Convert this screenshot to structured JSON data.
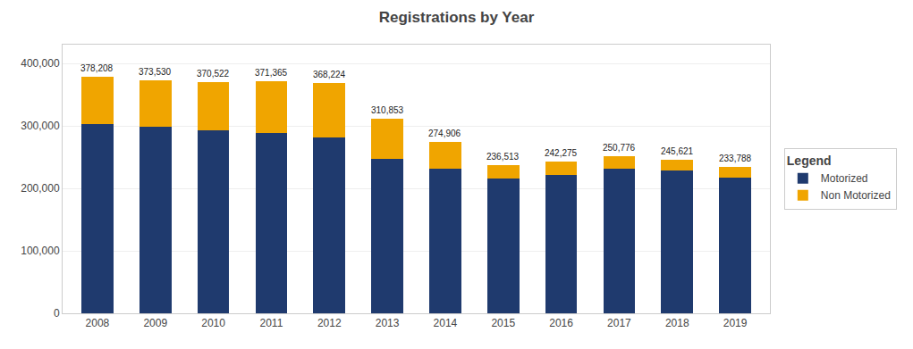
{
  "chart_data": {
    "type": "bar",
    "title": "Registrations by Year",
    "categories": [
      "2008",
      "2009",
      "2010",
      "2011",
      "2012",
      "2013",
      "2014",
      "2015",
      "2016",
      "2017",
      "2018",
      "2019"
    ],
    "series": [
      {
        "name": "Motorized",
        "color": "#1f3a6e",
        "values": [
          303000,
          298000,
          293500,
          289000,
          282000,
          247000,
          232000,
          216000,
          221500,
          231000,
          228000,
          216500
        ]
      },
      {
        "name": "Non Motorized",
        "color": "#f0a500",
        "values": [
          75208,
          75530,
          77022,
          82365,
          86224,
          63853,
          42906,
          20513,
          20775,
          19776,
          17621,
          17288
        ]
      }
    ],
    "stacked": true,
    "totals": [
      378208,
      373530,
      370522,
      371365,
      368224,
      310853,
      274906,
      236513,
      242275,
      250776,
      245621,
      233788
    ],
    "total_labels": [
      "378,208",
      "373,530",
      "370,522",
      "371,365",
      "368,224",
      "310,853",
      "274,906",
      "236,513",
      "242,275",
      "250,776",
      "245,621",
      "233,788"
    ],
    "ylim": [
      0,
      430000
    ],
    "yticks": [
      0,
      {
        "value": 100000,
        "label": "100,000"
      },
      {
        "value": 200000,
        "label": "200,000"
      },
      {
        "value": 300000,
        "label": "300,000"
      },
      {
        "value": 400000,
        "label": "400,000"
      }
    ],
    "grid": true,
    "legend": "right",
    "legend_title": "Legend"
  }
}
